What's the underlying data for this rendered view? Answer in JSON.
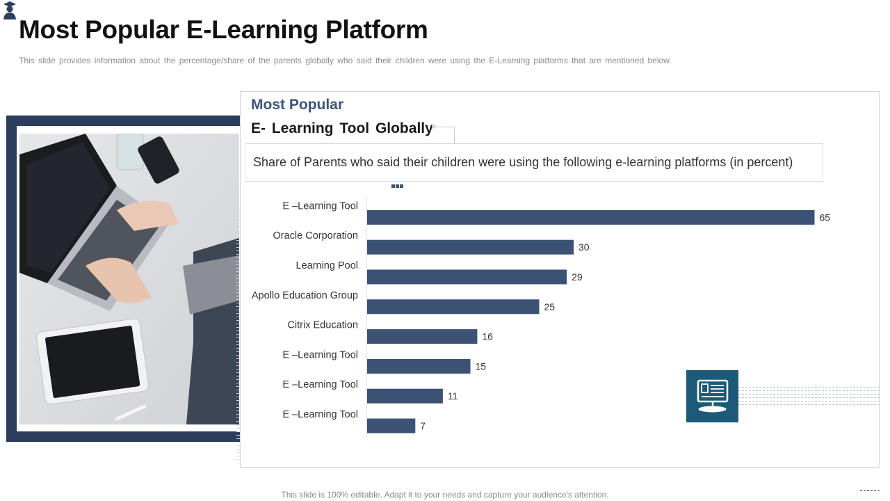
{
  "header": {
    "title": "Most Popular E-Learning Platform",
    "subtitle": "This slide provides information about the percentage/share of the parents globally who said their children were using the E-Learning platforms that are mentioned below."
  },
  "panel": {
    "heading_line1": "Most Popular",
    "heading_line2": "E- Learning Tool Globally",
    "description": "Share of Parents who said their children were using the following e-learning platforms (in percent)"
  },
  "chart_data": {
    "type": "bar",
    "orientation": "horizontal",
    "categories": [
      "E –Learning Tool",
      "Oracle Corporation",
      "Learning Pool",
      "Apollo Education Group",
      "Citrix Education",
      "E –Learning Tool",
      "E –Learning Tool",
      "E –Learning Tool"
    ],
    "values": [
      65,
      30,
      29,
      25,
      16,
      15,
      11,
      7
    ],
    "title": "",
    "xlabel": "",
    "ylabel": "",
    "xlim": [
      0,
      70
    ],
    "grid": false,
    "bar_color": "#3b5274",
    "data_labels": true
  },
  "icons": {
    "logo": "graduate-avatar-icon",
    "monitor": "monitor-icon"
  },
  "colors": {
    "accent": "#2b3e5c",
    "bar": "#3b5274",
    "icon_box": "#1d5a78"
  },
  "footer": {
    "text": "This slide is 100% editable. Adapt it to your needs and capture your audience's attention."
  }
}
